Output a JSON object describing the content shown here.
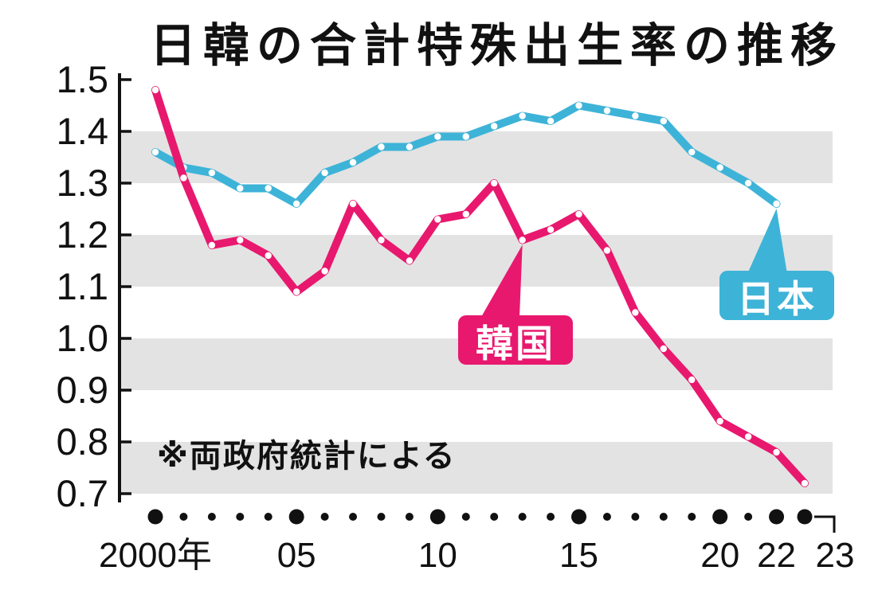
{
  "title": "日韓の合計特殊出生率の推移",
  "note": "※両政府統計による",
  "labels": {
    "japan": "日本",
    "korea": "韓国"
  },
  "colors": {
    "japan": "#3eb3d8",
    "korea": "#e8186e",
    "band": "#e3e3e3",
    "axis": "#111111",
    "point": "#ffffff",
    "background": "#ffffff"
  },
  "chart_data": {
    "type": "line",
    "title": "日韓の合計特殊出生率の推移",
    "note": "※両政府統計による",
    "ylim": [
      0.7,
      1.5
    ],
    "y_ticks": [
      1.5,
      1.4,
      1.3,
      1.2,
      1.1,
      1.0,
      0.9,
      0.8,
      0.7
    ],
    "gray_bands": [
      [
        1.3,
        1.4
      ],
      [
        1.1,
        1.2
      ],
      [
        0.9,
        1.0
      ],
      [
        0.7,
        0.8
      ]
    ],
    "grid": "horizontal-bands",
    "x_start_year": 2000,
    "x_end_year": 2023,
    "x_ticks": [
      {
        "year": 2000,
        "label": "2000年"
      },
      {
        "year": 2005,
        "label": "05"
      },
      {
        "year": 2010,
        "label": "10"
      },
      {
        "year": 2015,
        "label": "15"
      },
      {
        "year": 2020,
        "label": "20"
      },
      {
        "year": 2022,
        "label": "22"
      },
      {
        "year": 2023,
        "label": "23"
      }
    ],
    "series": [
      {
        "name": "日本",
        "color": "#3eb3d8",
        "start_year": 2000,
        "end_year": 2022,
        "values": [
          1.36,
          1.33,
          1.32,
          1.29,
          1.29,
          1.26,
          1.32,
          1.34,
          1.37,
          1.37,
          1.39,
          1.39,
          1.41,
          1.43,
          1.42,
          1.45,
          1.44,
          1.43,
          1.42,
          1.36,
          1.33,
          1.3,
          1.26
        ]
      },
      {
        "name": "韓国",
        "color": "#e8186e",
        "start_year": 2000,
        "end_year": 2023,
        "values": [
          1.48,
          1.31,
          1.18,
          1.19,
          1.16,
          1.09,
          1.13,
          1.26,
          1.19,
          1.15,
          1.23,
          1.24,
          1.3,
          1.19,
          1.21,
          1.24,
          1.17,
          1.05,
          0.98,
          0.92,
          0.84,
          0.81,
          0.78,
          0.72
        ]
      }
    ],
    "callouts": [
      {
        "series": "日本",
        "target_year": 2022,
        "target_value": 1.26
      },
      {
        "series": "韓国",
        "target_year": 2013,
        "target_value": 1.19
      }
    ],
    "legend_position": "inline-callout-boxes"
  }
}
